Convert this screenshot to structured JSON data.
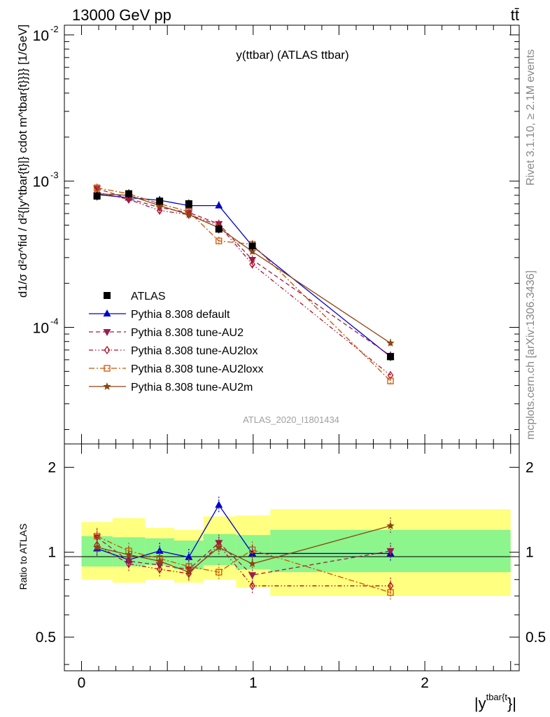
{
  "header": {
    "energy_label": "13000 GeV pp",
    "process_label": "tt̄",
    "side_label_rivet": "Rivet 3.1.10, ≥ 2.1M events",
    "side_label_mcplots": "mcplots.cern.ch [arXiv:1306.3436]"
  },
  "chart_data": {
    "type": "line",
    "title": "y(ttbar) (ATLAS ttbar)",
    "analysis_label": "ATLAS_2020_I1801434",
    "xlabel_main": "|y",
    "xlabel_sup": "tbar{t",
    "xlabel_suffix": "}|",
    "ylabel": "d1/σ d²σ^fid / d²{|y^tbar{t}|} cdot m^tbar{t}}}} [1/GeV]",
    "ylabel_ratio": "Ratio to ATLAS",
    "xlim": [
      -0.1,
      2.55
    ],
    "ylim": [
      1.595e-05,
      0.01165
    ],
    "ylim_ratio": [
      0.38,
      2.42
    ],
    "y_scale": "log",
    "x_ticks": [
      {
        "value": 0,
        "label": "0"
      },
      {
        "value": 1,
        "label": "1"
      },
      {
        "value": 2,
        "label": "2"
      }
    ],
    "y_ticks": [
      {
        "value": 0.0001,
        "label": "10",
        "exp": "-4"
      },
      {
        "value": 0.001,
        "label": "10",
        "exp": "-3"
      },
      {
        "value": 0.01,
        "label": "10",
        "exp": "-2"
      }
    ],
    "ratio_ticks": [
      {
        "value": 0.5,
        "label": "0.5"
      },
      {
        "value": 1,
        "label": "1"
      },
      {
        "value": 2,
        "label": "2"
      }
    ],
    "legend_position": "lower-left",
    "x": [
      0.09,
      0.275,
      0.455,
      0.625,
      0.8,
      0.995,
      1.8
    ],
    "bin_edges": [
      0,
      0.18,
      0.37,
      0.54,
      0.71,
      0.9,
      1.1,
      2.5
    ],
    "ratio_band_green": [
      [
        0.89,
        1.14
      ],
      [
        0.89,
        1.13
      ],
      [
        0.9,
        1.12
      ],
      [
        0.87,
        1.1
      ],
      [
        0.9,
        1.16
      ],
      [
        0.87,
        1.15
      ],
      [
        0.85,
        1.2
      ]
    ],
    "ratio_band_yellow": [
      [
        0.8,
        1.28
      ],
      [
        0.78,
        1.32
      ],
      [
        0.8,
        1.22
      ],
      [
        0.78,
        1.2
      ],
      [
        0.8,
        1.34
      ],
      [
        0.75,
        1.35
      ],
      [
        0.7,
        1.42
      ]
    ],
    "series": [
      {
        "name": "ATLAS",
        "color": "#000000",
        "marker": "square-filled",
        "line": "none",
        "values": [
          0.00079,
          0.00082,
          0.00073,
          0.0007,
          0.00047,
          0.00036,
          6.3e-05
        ],
        "ratio": [
          1,
          1,
          1,
          1,
          1,
          1,
          1
        ]
      },
      {
        "name": "Pythia 8.308 default",
        "color": "#0000cc",
        "marker": "triangle-up",
        "line": "solid",
        "values": [
          0.00081,
          0.00077,
          0.00074,
          0.00068,
          0.00068,
          0.00036,
          6.3e-05
        ],
        "ratio": [
          1.03,
          0.94,
          1.01,
          0.96,
          1.47,
          0.99,
          0.99
        ]
      },
      {
        "name": "Pythia 8.308 tune-AU2",
        "color": "#9b1c4e",
        "marker": "triangle-down",
        "line": "dashed",
        "values": [
          0.00089,
          0.00076,
          0.00066,
          0.00061,
          0.00051,
          0.00029,
          6.4e-05
        ],
        "ratio": [
          1.13,
          0.93,
          0.9,
          0.87,
          1.08,
          0.83,
          1.01
        ]
      },
      {
        "name": "Pythia 8.308 tune-AU2lox",
        "color": "#b0102a",
        "marker": "diamond-open",
        "line": "dashdotdot",
        "values": [
          0.00084,
          0.00075,
          0.00063,
          0.00059,
          0.0005,
          0.00027,
          4.7e-05
        ],
        "ratio": [
          1.06,
          0.91,
          0.87,
          0.84,
          1.06,
          0.76,
          0.76
        ]
      },
      {
        "name": "Pythia 8.308 tune-AU2loxx",
        "color": "#cc5500",
        "marker": "square-open",
        "line": "dashdot",
        "values": [
          0.0009,
          0.00082,
          0.0007,
          0.00062,
          0.00039,
          0.00037,
          4.3e-05
        ],
        "ratio": [
          1.14,
          1.01,
          0.95,
          0.89,
          0.85,
          1.02,
          0.72
        ]
      },
      {
        "name": "Pythia 8.308 tune-AU2m",
        "color": "#8b4513",
        "marker": "star",
        "line": "solid",
        "values": [
          0.00082,
          0.0008,
          0.00068,
          0.00059,
          0.00048,
          0.00033,
          7.8e-05
        ],
        "ratio": [
          1.04,
          0.98,
          0.93,
          0.85,
          1.04,
          0.91,
          1.24
        ]
      }
    ]
  }
}
